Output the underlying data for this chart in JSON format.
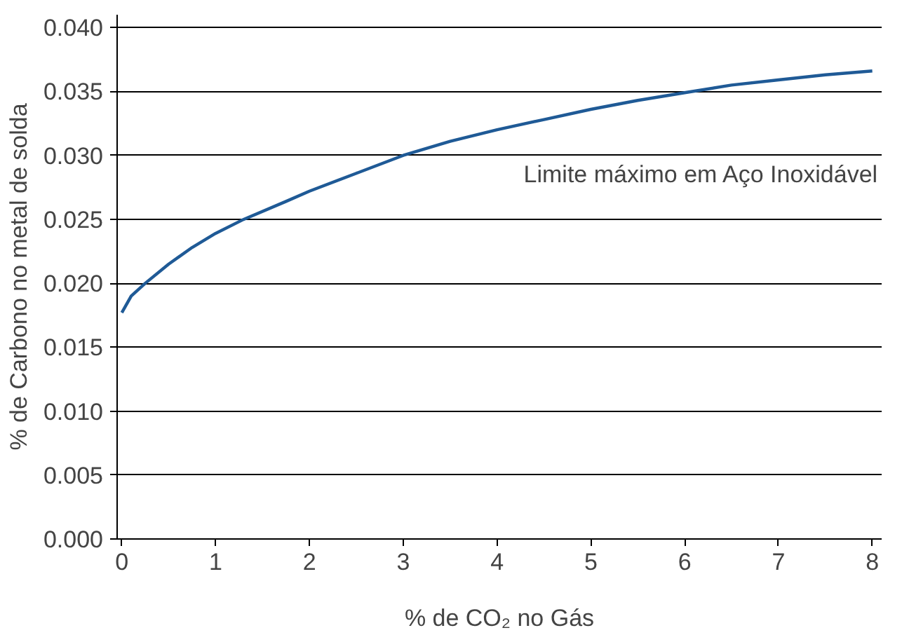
{
  "chart_data": {
    "type": "line",
    "xlabel": "% de CO₂ no Gás",
    "ylabel": "% de Carbono no metal de solda",
    "annotations": [
      "Limite máximo em Aço Inoxidável"
    ],
    "series": [
      {
        "color": "#1f5a96",
        "x": [
          0,
          0.1,
          0.25,
          0.5,
          0.75,
          1,
          1.3,
          1.75,
          2,
          2.5,
          3,
          3.5,
          4,
          4.5,
          5,
          5.5,
          6,
          6.5,
          7,
          7.5,
          8
        ],
        "values": [
          0.0177,
          0.019,
          0.02,
          0.0215,
          0.0228,
          0.0239,
          0.025,
          0.0264,
          0.0272,
          0.0286,
          0.03,
          0.0311,
          0.032,
          0.0328,
          0.0336,
          0.0343,
          0.0349,
          0.0355,
          0.0359,
          0.0363,
          0.0366
        ]
      }
    ],
    "xlim": [
      -0.05,
      8.1
    ],
    "ylim": [
      0,
      0.041
    ],
    "xticks": [
      0,
      1,
      2,
      3,
      4,
      5,
      6,
      7,
      8
    ],
    "yticks": [
      {
        "value": 0,
        "label": "0.000"
      },
      {
        "value": 0.005,
        "label": "0.005"
      },
      {
        "value": 0.01,
        "label": "0.010"
      },
      {
        "value": 0.015,
        "label": "0.015"
      },
      {
        "value": 0.02,
        "label": "0.020"
      },
      {
        "value": 0.025,
        "label": "0.025"
      },
      {
        "value": 0.03,
        "label": "0.030"
      },
      {
        "value": 0.035,
        "label": "0.035"
      },
      {
        "value": 0.04,
        "label": "0.040"
      }
    ],
    "grid": "y",
    "line_style": "solid"
  }
}
